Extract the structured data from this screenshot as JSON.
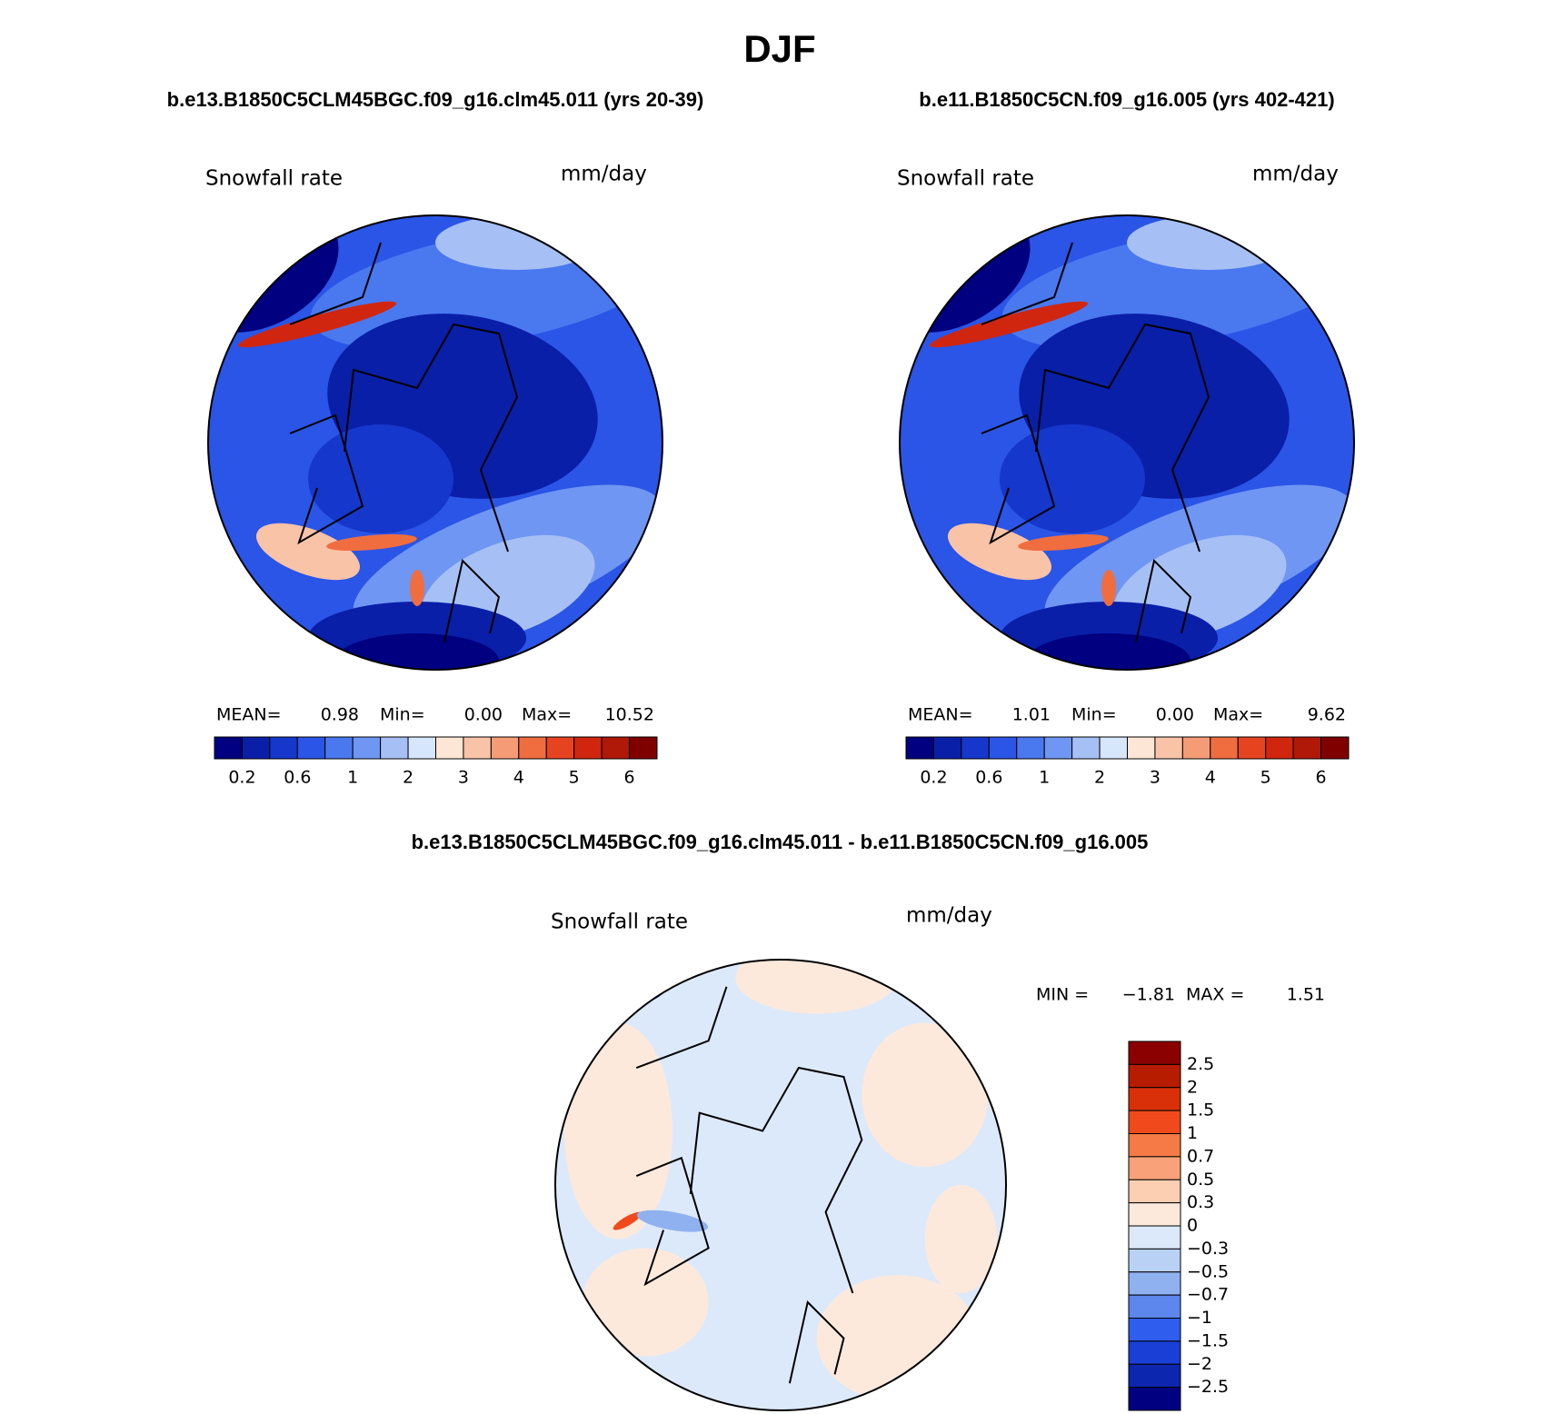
{
  "title": "DJF",
  "panels": [
    {
      "title": "b.e13.B1850C5CLM45BGC.f09_g16.clm45.011 (yrs 20-39)",
      "variable": "Snowfall rate",
      "units": "mm/day",
      "stats": [
        {
          "label": "MEAN=",
          "value": "0.98"
        },
        {
          "label": "Min=",
          "value": "0.00"
        },
        {
          "label": "Max=",
          "value": "10.52"
        }
      ],
      "colorbar": {
        "colors": [
          "#000080",
          "#0a1fa8",
          "#1537cc",
          "#2a55e6",
          "#4a78ef",
          "#6f96f2",
          "#a6c0f5",
          "#d6e6fb",
          "#fde6d6",
          "#f9c3a8",
          "#f59c77",
          "#f06d40",
          "#e64420",
          "#d0260f",
          "#b01808",
          "#800000"
        ],
        "labels": [
          "0.2",
          "0.6",
          "1",
          "2",
          "3",
          "4",
          "5",
          "6"
        ]
      }
    },
    {
      "title": "b.e11.B1850C5CN.f09_g16.005 (yrs 402-421)",
      "variable": "Snowfall rate",
      "units": "mm/day",
      "stats": [
        {
          "label": "MEAN=",
          "value": "1.01"
        },
        {
          "label": "Min=",
          "value": "0.00"
        },
        {
          "label": "Max=",
          "value": "9.62"
        }
      ],
      "colorbar": {
        "colors": [
          "#000080",
          "#0a1fa8",
          "#1537cc",
          "#2a55e6",
          "#4a78ef",
          "#6f96f2",
          "#a6c0f5",
          "#d6e6fb",
          "#fde6d6",
          "#f9c3a8",
          "#f59c77",
          "#f06d40",
          "#e64420",
          "#d0260f",
          "#b01808",
          "#800000"
        ],
        "labels": [
          "0.2",
          "0.6",
          "1",
          "2",
          "3",
          "4",
          "5",
          "6"
        ]
      }
    }
  ],
  "difference": {
    "title": "b.e13.B1850C5CLM45BGC.f09_g16.clm45.011 - b.e11.B1850C5CN.f09_g16.005",
    "variable": "Snowfall rate",
    "units": "mm/day",
    "stats": [
      {
        "label": "MIN =",
        "value": "−1.81"
      },
      {
        "label": "MAX =",
        "value": "1.51"
      }
    ],
    "colorbar": {
      "colors": [
        "#8b0000",
        "#b81c00",
        "#d9300a",
        "#f04a1c",
        "#f57a45",
        "#f9a27a",
        "#fcceb2",
        "#fde9dc",
        "#dce9fa",
        "#b9d1f5",
        "#8fb1f0",
        "#5d87ec",
        "#2f5ded",
        "#1a3fd6",
        "#0c26b0",
        "#000080"
      ],
      "labels": [
        "2.5",
        "2",
        "1.5",
        "1",
        "0.7",
        "0.5",
        "0.3",
        "0",
        "−0.3",
        "−0.5",
        "−0.7",
        "−1",
        "−1.5",
        "−2",
        "−2.5"
      ]
    }
  }
}
